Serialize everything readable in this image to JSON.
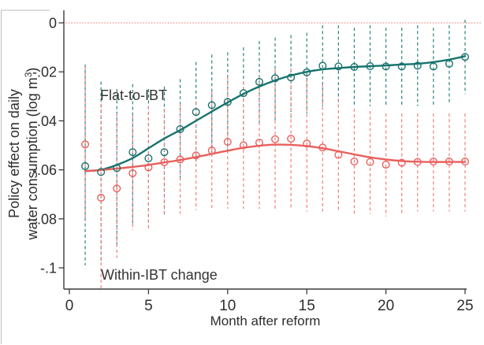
{
  "chart_data": {
    "type": "line",
    "title": "",
    "xlabel": "Month after reform",
    "ylabel": "Policy effect on daily water consumption (log m³)",
    "ylabel_lines": {
      "line1": "Policy effect on daily",
      "line2_pre": "water consumption (log m",
      "superscript": "3",
      "line2_post": ")"
    },
    "xlim": [
      0,
      25.6
    ],
    "ylim": [
      -0.113,
      0.005
    ],
    "xticks": [
      0,
      5,
      10,
      15,
      20,
      25
    ],
    "yticks": [
      0,
      -0.02,
      -0.04,
      -0.06,
      -0.08,
      -0.1
    ],
    "ytick_labels": [
      "0",
      "-.02",
      "-.04",
      "-.06",
      "-.08",
      "-.1"
    ],
    "grid": "off",
    "legend": "inline-annotations",
    "zero_line": {
      "value": 0,
      "style": "dotted",
      "color": "#f0928d"
    },
    "months": [
      1,
      2,
      3,
      4,
      5,
      6,
      7,
      8,
      9,
      10,
      11,
      12,
      13,
      14,
      15,
      16,
      17,
      18,
      19,
      20,
      21,
      22,
      23,
      24,
      25
    ],
    "series": [
      {
        "name": "Flat-to-IBT",
        "marker": "open-circle",
        "color": "#17736e",
        "ci_color": "#2b837d",
        "estimates": [
          -0.0585,
          -0.0609,
          -0.0593,
          -0.0528,
          -0.0553,
          -0.0528,
          -0.0434,
          -0.0364,
          -0.0336,
          -0.0323,
          -0.0287,
          -0.0241,
          -0.0226,
          -0.0223,
          -0.0202,
          -0.0175,
          -0.0178,
          -0.018,
          -0.0177,
          -0.0178,
          -0.0178,
          -0.0175,
          -0.0178,
          -0.0167,
          -0.0139
        ],
        "ci_high": [
          -0.017,
          -0.024,
          -0.027,
          -0.025,
          -0.027,
          -0.026,
          -0.023,
          -0.016,
          -0.013,
          -0.012,
          -0.01,
          -0.0074,
          -0.006,
          -0.005,
          -0.004,
          -0.001,
          -0.001,
          -0.002,
          -0.001,
          -0.002,
          -0.002,
          -0.001,
          -0.002,
          -0.001,
          0.0013
        ],
        "ci_low": [
          -0.099,
          -0.098,
          -0.0913,
          -0.082,
          -0.083,
          -0.079,
          -0.064,
          -0.057,
          -0.053,
          -0.052,
          -0.048,
          -0.0412,
          -0.04,
          -0.039,
          -0.037,
          -0.034,
          -0.034,
          -0.034,
          -0.034,
          -0.034,
          -0.034,
          -0.034,
          -0.034,
          -0.033,
          -0.029
        ],
        "fit": [
          -0.0605,
          -0.06,
          -0.058,
          -0.0552,
          -0.0512,
          -0.0472,
          -0.0438,
          -0.04,
          -0.0362,
          -0.0325,
          -0.029,
          -0.026,
          -0.0235,
          -0.0215,
          -0.02,
          -0.019,
          -0.0185,
          -0.018,
          -0.0177,
          -0.0174,
          -0.017,
          -0.0167,
          -0.016,
          -0.015,
          -0.0136
        ]
      },
      {
        "name": "Within-IBT change",
        "marker": "open-circle",
        "color": "#e95f5c",
        "ci_color": "#f07f7a",
        "estimates": [
          -0.0496,
          -0.0714,
          -0.0676,
          -0.0614,
          -0.059,
          -0.0569,
          -0.0558,
          -0.0541,
          -0.0521,
          -0.0486,
          -0.05,
          -0.0489,
          -0.0475,
          -0.0473,
          -0.0493,
          -0.0509,
          -0.0539,
          -0.0566,
          -0.0568,
          -0.0579,
          -0.0571,
          -0.0568,
          -0.0566,
          -0.0566,
          -0.0566
        ],
        "ci_high": [
          -0.018,
          -0.033,
          -0.037,
          -0.038,
          -0.034,
          -0.035,
          -0.033,
          -0.032,
          -0.028,
          -0.022,
          -0.024,
          -0.022,
          -0.019,
          -0.0185,
          -0.021,
          -0.025,
          -0.031,
          -0.035,
          -0.036,
          -0.037,
          -0.037,
          -0.037,
          -0.037,
          -0.037,
          -0.037
        ],
        "ci_low": [
          -0.081,
          -0.109,
          -0.096,
          -0.0845,
          -0.084,
          -0.0785,
          -0.078,
          -0.0764,
          -0.0764,
          -0.0759,
          -0.0759,
          -0.0759,
          -0.0764,
          -0.076,
          -0.077,
          -0.077,
          -0.077,
          -0.078,
          -0.078,
          -0.079,
          -0.078,
          -0.077,
          -0.077,
          -0.077,
          -0.077
        ],
        "fit": [
          -0.0605,
          -0.0601,
          -0.0595,
          -0.0588,
          -0.058,
          -0.057,
          -0.056,
          -0.0548,
          -0.0535,
          -0.0522,
          -0.051,
          -0.0502,
          -0.0497,
          -0.0498,
          -0.0503,
          -0.0512,
          -0.0524,
          -0.0537,
          -0.0549,
          -0.0558,
          -0.0564,
          -0.0567,
          -0.0568,
          -0.0568,
          -0.0568
        ]
      }
    ],
    "annotations": [
      {
        "text": "Flat-to-IBT"
      },
      {
        "text": "Within-IBT change"
      }
    ],
    "axis_color": "#3c3c3c",
    "text_color": "#2e2e2e",
    "border_color": "#bdbdbd"
  }
}
